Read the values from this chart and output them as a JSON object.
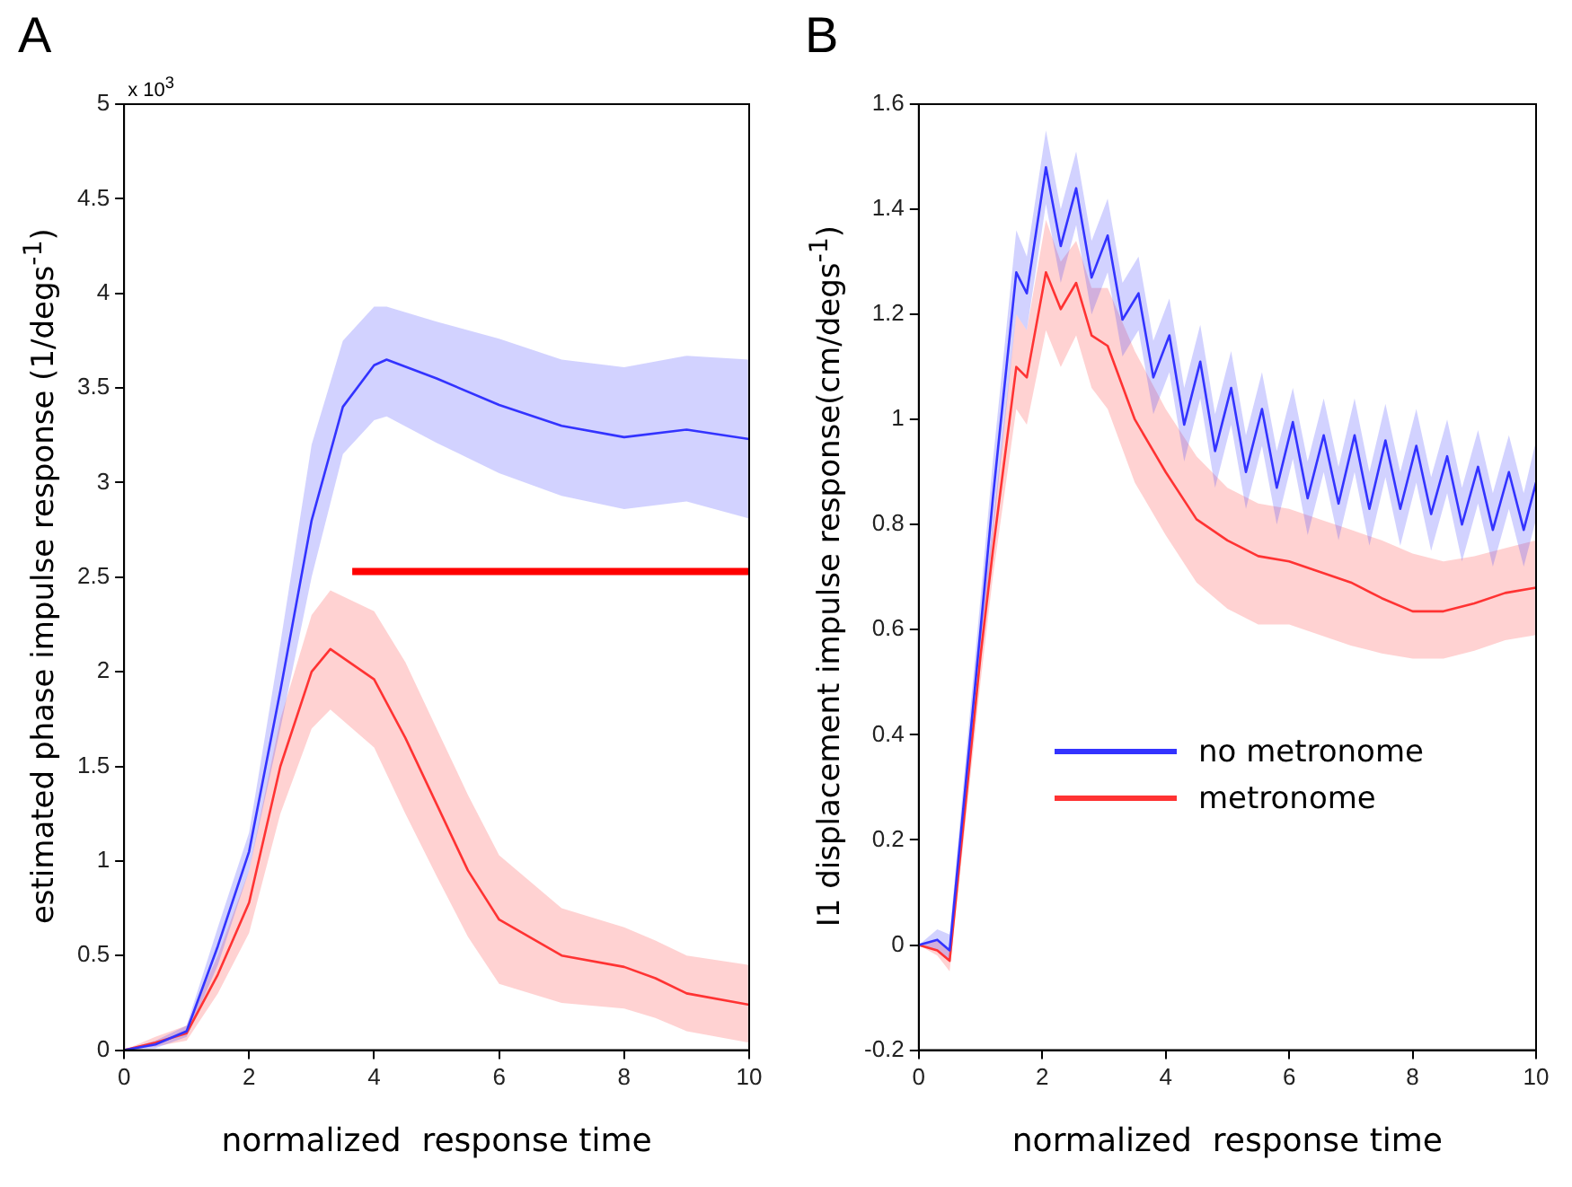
{
  "chart_data": [
    {
      "type": "line",
      "title": "A",
      "xlabel": "normalized  response time",
      "ylabel": "estimated phase impulse response (1/degs$^{-1}$)",
      "annotations": [
        "x 10$^{3}$"
      ],
      "xlim": [
        0,
        10
      ],
      "xticks": [
        0,
        2,
        4,
        6,
        8,
        10
      ],
      "ylim": [
        0,
        5
      ],
      "yticks": [
        0,
        0.5,
        1,
        1.5,
        2,
        2.5,
        3,
        3.5,
        4,
        4.5,
        5
      ],
      "grid": false,
      "legend": false,
      "series": [
        {
          "color": "#3333ff",
          "x": [
            0,
            0.5,
            1,
            1.5,
            2,
            2.5,
            3,
            3.5,
            4,
            4.2,
            5,
            6,
            7,
            8,
            9,
            10
          ],
          "values": [
            0,
            0.03,
            0.1,
            0.55,
            1.05,
            1.9,
            2.8,
            3.4,
            3.62,
            3.65,
            3.55,
            3.41,
            3.3,
            3.24,
            3.28,
            3.23
          ],
          "upper": [
            0,
            0.05,
            0.13,
            0.65,
            1.15,
            2.15,
            3.2,
            3.75,
            3.93,
            3.93,
            3.85,
            3.76,
            3.65,
            3.61,
            3.67,
            3.65
          ],
          "lower": [
            0,
            0.01,
            0.07,
            0.45,
            0.95,
            1.7,
            2.5,
            3.15,
            3.33,
            3.35,
            3.21,
            3.05,
            2.93,
            2.86,
            2.9,
            2.81
          ]
        },
        {
          "color": "#ff3333",
          "x": [
            0,
            0.5,
            1,
            1.5,
            2,
            2.5,
            3,
            3.3,
            4,
            4.5,
            5,
            5.5,
            6,
            7,
            8,
            8.5,
            9,
            10
          ],
          "values": [
            0,
            0.04,
            0.09,
            0.4,
            0.78,
            1.5,
            2.0,
            2.12,
            1.96,
            1.65,
            1.3,
            0.95,
            0.69,
            0.5,
            0.44,
            0.38,
            0.3,
            0.24
          ],
          "upper": [
            0,
            0.07,
            0.13,
            0.5,
            0.95,
            1.75,
            2.3,
            2.43,
            2.32,
            2.05,
            1.7,
            1.35,
            1.03,
            0.75,
            0.65,
            0.58,
            0.5,
            0.45
          ],
          "lower": [
            0,
            0.02,
            0.05,
            0.3,
            0.62,
            1.25,
            1.7,
            1.8,
            1.6,
            1.25,
            0.92,
            0.6,
            0.35,
            0.25,
            0.22,
            0.17,
            0.1,
            0.04
          ]
        },
        {
          "color": "#ff0000",
          "x": [
            3.65,
            10
          ],
          "values": [
            2.53,
            2.53
          ]
        }
      ]
    },
    {
      "type": "line",
      "title": "B",
      "xlabel": "normalized  response time",
      "ylabel": "I1 displacement impulse response(cm/degs$^{-1}$)",
      "xlim": [
        0,
        10
      ],
      "xticks": [
        0,
        2,
        4,
        6,
        8,
        10
      ],
      "ylim": [
        -0.2,
        1.6
      ],
      "yticks": [
        -0.2,
        0,
        0.2,
        0.4,
        0.6,
        0.8,
        1,
        1.2,
        1.4,
        1.6
      ],
      "grid": false,
      "legend": "center",
      "series": [
        {
          "name": "no metronome",
          "color": "#3333ff",
          "x": [
            0,
            0.3,
            0.5,
            1.0,
            1.2,
            1.58,
            1.75,
            2.06,
            2.3,
            2.55,
            2.8,
            3.06,
            3.3,
            3.56,
            3.8,
            4.06,
            4.3,
            4.56,
            4.8,
            5.06,
            5.3,
            5.56,
            5.8,
            6.06,
            6.3,
            6.56,
            6.8,
            7.06,
            7.3,
            7.56,
            7.8,
            8.06,
            8.3,
            8.56,
            8.8,
            9.06,
            9.3,
            9.56,
            9.8,
            10
          ],
          "values": [
            0,
            0.01,
            -0.01,
            0.6,
            0.85,
            1.28,
            1.24,
            1.48,
            1.33,
            1.44,
            1.27,
            1.35,
            1.19,
            1.24,
            1.08,
            1.16,
            0.99,
            1.11,
            0.94,
            1.06,
            0.9,
            1.02,
            0.87,
            0.995,
            0.85,
            0.97,
            0.84,
            0.97,
            0.83,
            0.96,
            0.83,
            0.95,
            0.82,
            0.93,
            0.8,
            0.91,
            0.79,
            0.9,
            0.79,
            0.88
          ],
          "upper": [
            0,
            0.03,
            0.02,
            0.66,
            0.92,
            1.36,
            1.31,
            1.55,
            1.4,
            1.51,
            1.34,
            1.42,
            1.26,
            1.31,
            1.15,
            1.23,
            1.06,
            1.18,
            1.01,
            1.13,
            0.97,
            1.09,
            0.94,
            1.06,
            0.92,
            1.04,
            0.91,
            1.04,
            0.9,
            1.03,
            0.9,
            1.02,
            0.89,
            1.0,
            0.87,
            0.98,
            0.86,
            0.97,
            0.86,
            0.96
          ],
          "lower": [
            0,
            -0.01,
            -0.03,
            0.54,
            0.78,
            1.2,
            1.17,
            1.41,
            1.26,
            1.37,
            1.2,
            1.28,
            1.12,
            1.17,
            1.01,
            1.09,
            0.92,
            1.04,
            0.87,
            0.99,
            0.83,
            0.95,
            0.8,
            0.925,
            0.78,
            0.9,
            0.77,
            0.9,
            0.76,
            0.89,
            0.76,
            0.88,
            0.75,
            0.86,
            0.73,
            0.84,
            0.72,
            0.83,
            0.72,
            0.81
          ]
        },
        {
          "name": "metronome",
          "color": "#ff3333",
          "x": [
            0,
            0.3,
            0.5,
            1.0,
            1.2,
            1.58,
            1.75,
            2.06,
            2.3,
            2.55,
            2.8,
            3.06,
            3.5,
            4,
            4.5,
            5,
            5.5,
            6,
            6.5,
            7,
            7.5,
            8,
            8.5,
            9,
            9.5,
            10
          ],
          "values": [
            0,
            -0.01,
            -0.03,
            0.55,
            0.75,
            1.1,
            1.08,
            1.28,
            1.21,
            1.26,
            1.16,
            1.14,
            1.0,
            0.9,
            0.81,
            0.77,
            0.74,
            0.73,
            0.71,
            0.69,
            0.66,
            0.635,
            0.635,
            0.65,
            0.67,
            0.68
          ],
          "upper": [
            0,
            0.01,
            -0.01,
            0.6,
            0.8,
            1.2,
            1.17,
            1.38,
            1.3,
            1.34,
            1.25,
            1.25,
            1.13,
            1.02,
            0.93,
            0.87,
            0.84,
            0.83,
            0.81,
            0.79,
            0.77,
            0.745,
            0.73,
            0.74,
            0.755,
            0.77
          ],
          "lower": [
            0,
            -0.02,
            -0.05,
            0.5,
            0.7,
            1.02,
            0.99,
            1.17,
            1.1,
            1.16,
            1.06,
            1.02,
            0.88,
            0.78,
            0.69,
            0.64,
            0.61,
            0.61,
            0.59,
            0.57,
            0.555,
            0.545,
            0.545,
            0.56,
            0.58,
            0.59
          ]
        }
      ]
    }
  ]
}
